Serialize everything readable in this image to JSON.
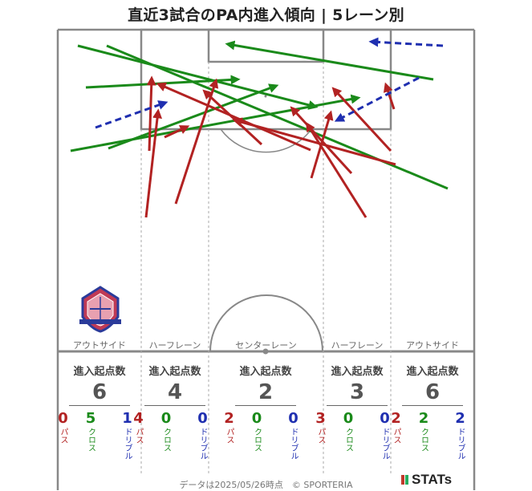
{
  "title": "直近3試合のPA内進入傾向 | 5レーン別",
  "lanes": [
    {
      "label": "アウトサイド",
      "stat_head": "進入起点数",
      "total": "6",
      "pass": "0",
      "cross": "5",
      "dribble": "1"
    },
    {
      "label": "ハーフレーン",
      "stat_head": "進入起点数",
      "total": "4",
      "pass": "4",
      "cross": "0",
      "dribble": "0"
    },
    {
      "label": "センターレーン",
      "stat_head": "進入起点数",
      "total": "2",
      "pass": "2",
      "cross": "0",
      "dribble": "0"
    },
    {
      "label": "ハーフレーン",
      "stat_head": "進入起点数",
      "total": "3",
      "pass": "3",
      "cross": "0",
      "dribble": "0"
    },
    {
      "label": "アウトサイド",
      "stat_head": "進入起点数",
      "total": "6",
      "pass": "2",
      "cross": "2",
      "dribble": "2"
    }
  ],
  "legend": {
    "pass": "パス",
    "cross": "クロス",
    "dribble": "ドリブル"
  },
  "footer": "データは2025/05/26時点　© SPORTERIA",
  "logo_text": "STATs",
  "colors": {
    "pass": "#b22222",
    "cross": "#1a8a1a",
    "dribble": "#1f2fb0",
    "pitch_line": "#888888"
  },
  "icons": {
    "crest": "club-crest-icon",
    "logo": "stats-logo-icon"
  }
}
